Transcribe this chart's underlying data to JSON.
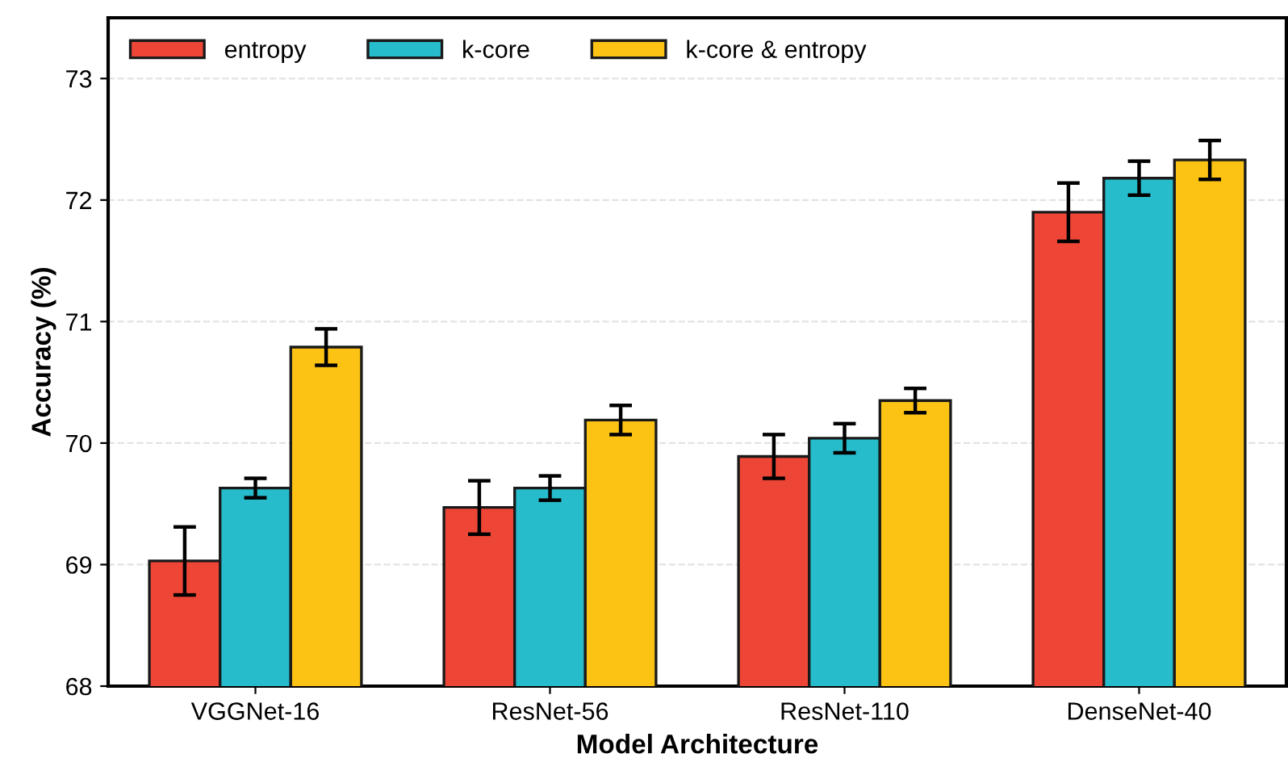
{
  "chart_data": {
    "type": "bar",
    "xlabel": "Model Architecture",
    "ylabel": "Accuracy (%)",
    "categories": [
      "VGGNet-16",
      "ResNet-56",
      "ResNet-110",
      "DenseNet-40"
    ],
    "series": [
      {
        "name": "entropy",
        "color": "#ee4636",
        "values": [
          69.03,
          69.47,
          69.89,
          71.9
        ],
        "errors": [
          0.28,
          0.22,
          0.18,
          0.24
        ]
      },
      {
        "name": "k-core",
        "color": "#26bccc",
        "values": [
          69.63,
          69.63,
          70.04,
          72.18
        ],
        "errors": [
          0.08,
          0.1,
          0.12,
          0.14
        ]
      },
      {
        "name": "k-core & entropy",
        "color": "#fcc214",
        "values": [
          70.79,
          70.19,
          70.35,
          72.33
        ],
        "errors": [
          0.15,
          0.12,
          0.1,
          0.16
        ]
      }
    ],
    "ylim": [
      68,
      73.5
    ],
    "yticks": [
      68,
      69,
      70,
      71,
      72,
      73
    ],
    "grid": "y",
    "legend": "top left"
  }
}
